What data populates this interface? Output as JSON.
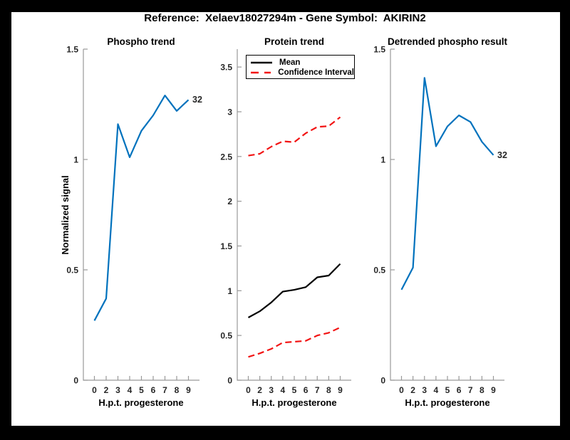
{
  "figure": {
    "title": "Reference:  Xelaev18027294m - Gene Symbol:  AKIRIN2",
    "border_color": "#000000",
    "background_color": "#ffffff"
  },
  "colors": {
    "line_blue": "#0072BD",
    "line_black": "#000000",
    "line_red": "#F21414",
    "axis_gray": "#999999",
    "tick_text": "#262626"
  },
  "chart_data": [
    {
      "type": "line",
      "title": "Phospho trend",
      "xlabel": "H.p.t. progesterone",
      "ylabel": "Normalized signal",
      "x_labels": [
        "0",
        "2",
        "3",
        "4",
        "5",
        "6",
        "7",
        "8",
        "9"
      ],
      "yticks": [
        0,
        0.5,
        1,
        1.5
      ],
      "ylim": [
        0,
        1.5
      ],
      "grid": false,
      "series": [
        {
          "name": "Phospho signal",
          "color_key": "line_blue",
          "style": "solid",
          "values": [
            0.27,
            0.37,
            1.16,
            1.01,
            1.13,
            1.2,
            1.29,
            1.22,
            1.27
          ]
        }
      ],
      "annotation": {
        "text": "32"
      }
    },
    {
      "type": "line",
      "title": "Protein trend",
      "xlabel": "H.p.t. progesterone",
      "ylabel": "",
      "x_labels": [
        "0",
        "2",
        "3",
        "4",
        "5",
        "6",
        "7",
        "8",
        "9"
      ],
      "yticks": [
        0,
        0.5,
        1,
        1.5,
        2,
        2.5,
        3,
        3.5
      ],
      "ylim": [
        0,
        3.7
      ],
      "grid": false,
      "legend": {
        "position": "top-left",
        "items": [
          "Mean",
          "Confidence Interval"
        ]
      },
      "series": [
        {
          "name": "Mean",
          "color_key": "line_black",
          "style": "solid",
          "values": [
            0.7,
            0.77,
            0.87,
            0.99,
            1.01,
            1.04,
            1.15,
            1.17,
            1.3
          ]
        },
        {
          "name": "Confidence Interval upper",
          "color_key": "line_red",
          "style": "dashed",
          "values": [
            2.51,
            2.53,
            2.61,
            2.67,
            2.66,
            2.76,
            2.83,
            2.84,
            2.94
          ]
        },
        {
          "name": "Confidence Interval lower",
          "color_key": "line_red",
          "style": "dashed",
          "values": [
            0.26,
            0.3,
            0.35,
            0.42,
            0.43,
            0.44,
            0.5,
            0.53,
            0.59
          ]
        }
      ]
    },
    {
      "type": "line",
      "title": "Detrended phospho result",
      "xlabel": "H.p.t. progesterone",
      "ylabel": "",
      "x_labels": [
        "0",
        "2",
        "3",
        "4",
        "5",
        "6",
        "7",
        "8",
        "9"
      ],
      "yticks": [
        0,
        0.5,
        1,
        1.5
      ],
      "ylim": [
        0,
        1.5
      ],
      "grid": false,
      "series": [
        {
          "name": "Detrended phospho signal",
          "color_key": "line_blue",
          "style": "solid",
          "values": [
            0.41,
            0.51,
            1.37,
            1.06,
            1.15,
            1.2,
            1.17,
            1.08,
            1.02
          ]
        }
      ],
      "annotation": {
        "text": "32"
      }
    }
  ]
}
